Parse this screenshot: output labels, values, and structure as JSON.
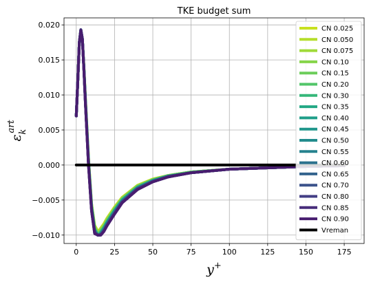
{
  "chart_data": {
    "type": "line",
    "title": "TKE budget sum",
    "xlabel": "y",
    "xlabel_sup": "+",
    "ylabel": "ε",
    "ylabel_sub": "k",
    "ylabel_sup": "art",
    "xlim": [
      -8,
      188
    ],
    "ylim": [
      -0.0112,
      0.021
    ],
    "xticks": [
      0,
      25,
      50,
      75,
      100,
      125,
      150,
      175
    ],
    "xtick_labels": [
      "0",
      "25",
      "50",
      "75",
      "100",
      "125",
      "150",
      "175"
    ],
    "yticks": [
      -0.01,
      -0.005,
      0.0,
      0.005,
      0.01,
      0.015,
      0.02
    ],
    "ytick_labels": [
      "−0.010",
      "−0.005",
      "0.000",
      "0.005",
      "0.010",
      "0.015",
      "0.020"
    ],
    "grid": true,
    "legend_position": "right",
    "x": [
      0,
      1,
      2,
      3,
      4,
      5,
      6,
      8,
      10,
      12,
      14,
      15,
      16,
      18,
      20,
      25,
      30,
      40,
      50,
      60,
      75,
      100,
      125,
      150,
      175
    ],
    "series": [
      {
        "name": "CN 0.025",
        "color": "#c8e020",
        "values": [
          0.007,
          0.012,
          0.0175,
          0.0193,
          0.018,
          0.014,
          0.0095,
          0.001,
          -0.0055,
          -0.0086,
          -0.0094,
          -0.0093,
          -0.009,
          -0.0084,
          -0.0076,
          -0.006,
          -0.0046,
          -0.0029,
          -0.002,
          -0.0015,
          -0.001,
          -0.0006,
          -0.0004,
          -0.0002,
          -0.0001
        ]
      },
      {
        "name": "CN 0.050",
        "color": "#b5de2b",
        "values": [
          0.007,
          0.012,
          0.0175,
          0.0193,
          0.018,
          0.014,
          0.0094,
          0.0009,
          -0.0056,
          -0.0087,
          -0.0095,
          -0.0094,
          -0.0091,
          -0.0085,
          -0.0077,
          -0.0061,
          -0.0047,
          -0.0029,
          -0.002,
          -0.0015,
          -0.001,
          -0.0006,
          -0.0004,
          -0.0002,
          -0.0001
        ]
      },
      {
        "name": "CN 0.075",
        "color": "#a0da39",
        "values": [
          0.007,
          0.012,
          0.0175,
          0.0193,
          0.018,
          0.0139,
          0.0094,
          0.0009,
          -0.0056,
          -0.0088,
          -0.0096,
          -0.0095,
          -0.0092,
          -0.0086,
          -0.0078,
          -0.0062,
          -0.0047,
          -0.003,
          -0.0021,
          -0.0015,
          -0.001,
          -0.0006,
          -0.0004,
          -0.0002,
          -0.0001
        ]
      },
      {
        "name": "CN 0.10",
        "color": "#86d549",
        "values": [
          0.007,
          0.012,
          0.0175,
          0.0193,
          0.018,
          0.0139,
          0.0093,
          0.0008,
          -0.0057,
          -0.0089,
          -0.0097,
          -0.0096,
          -0.0093,
          -0.0087,
          -0.0079,
          -0.0062,
          -0.0048,
          -0.003,
          -0.0021,
          -0.0015,
          -0.001,
          -0.0006,
          -0.0004,
          -0.0002,
          -0.0001
        ]
      },
      {
        "name": "CN 0.15",
        "color": "#6ccd5a",
        "values": [
          0.007,
          0.012,
          0.0175,
          0.0193,
          0.018,
          0.0139,
          0.0093,
          0.0007,
          -0.0058,
          -0.009,
          -0.0098,
          -0.0097,
          -0.0094,
          -0.0088,
          -0.008,
          -0.0063,
          -0.0048,
          -0.0031,
          -0.0021,
          -0.0015,
          -0.001,
          -0.0006,
          -0.0004,
          -0.0002,
          -0.0001
        ]
      },
      {
        "name": "CN 0.20",
        "color": "#52c569",
        "values": [
          0.007,
          0.012,
          0.0175,
          0.0193,
          0.018,
          0.0138,
          0.0092,
          0.0006,
          -0.0059,
          -0.0091,
          -0.0099,
          -0.0098,
          -0.0095,
          -0.0089,
          -0.0081,
          -0.0064,
          -0.0049,
          -0.0031,
          -0.0022,
          -0.0016,
          -0.001,
          -0.0006,
          -0.0004,
          -0.0002,
          -0.0001
        ]
      },
      {
        "name": "CN 0.30",
        "color": "#35b779",
        "values": [
          0.007,
          0.012,
          0.0175,
          0.0193,
          0.018,
          0.0138,
          0.0092,
          0.0005,
          -0.006,
          -0.0092,
          -0.01,
          -0.0099,
          -0.0096,
          -0.009,
          -0.0082,
          -0.0065,
          -0.005,
          -0.0032,
          -0.0022,
          -0.0016,
          -0.0011,
          -0.0006,
          -0.0004,
          -0.0002,
          -0.0001
        ]
      },
      {
        "name": "CN 0.35",
        "color": "#22a884",
        "values": [
          0.007,
          0.012,
          0.0175,
          0.0193,
          0.018,
          0.0138,
          0.0091,
          0.0005,
          -0.006,
          -0.0092,
          -0.01,
          -0.0099,
          -0.0097,
          -0.009,
          -0.0082,
          -0.0065,
          -0.005,
          -0.0032,
          -0.0022,
          -0.0016,
          -0.0011,
          -0.0006,
          -0.0004,
          -0.0002,
          -0.0001
        ]
      },
      {
        "name": "CN 0.40",
        "color": "#1f9e89",
        "values": [
          0.007,
          0.012,
          0.0175,
          0.0193,
          0.018,
          0.0138,
          0.0091,
          0.0004,
          -0.0061,
          -0.0093,
          -0.01,
          -0.01,
          -0.0097,
          -0.0091,
          -0.0083,
          -0.0066,
          -0.0051,
          -0.0032,
          -0.0022,
          -0.0016,
          -0.0011,
          -0.0006,
          -0.0004,
          -0.0002,
          -0.0001
        ]
      },
      {
        "name": "CN 0.45",
        "color": "#1f968b",
        "values": [
          0.007,
          0.012,
          0.0175,
          0.0193,
          0.018,
          0.0137,
          0.009,
          0.0004,
          -0.0061,
          -0.0093,
          -0.01,
          -0.01,
          -0.0098,
          -0.0091,
          -0.0083,
          -0.0066,
          -0.0051,
          -0.0033,
          -0.0023,
          -0.0016,
          -0.0011,
          -0.0006,
          -0.0004,
          -0.0002,
          -0.0001
        ]
      },
      {
        "name": "CN 0.50",
        "color": "#228c8d",
        "values": [
          0.007,
          0.012,
          0.0175,
          0.0193,
          0.018,
          0.0137,
          0.009,
          0.0003,
          -0.0062,
          -0.0094,
          -0.01,
          -0.01,
          -0.0098,
          -0.0092,
          -0.0084,
          -0.0067,
          -0.0051,
          -0.0033,
          -0.0023,
          -0.0016,
          -0.0011,
          -0.0006,
          -0.0004,
          -0.0002,
          -0.0001
        ]
      },
      {
        "name": "CN 0.55",
        "color": "#26828e",
        "values": [
          0.007,
          0.012,
          0.0175,
          0.0193,
          0.018,
          0.0137,
          0.009,
          0.0003,
          -0.0062,
          -0.0094,
          -0.01,
          -0.01,
          -0.0098,
          -0.0092,
          -0.0084,
          -0.0067,
          -0.0052,
          -0.0033,
          -0.0023,
          -0.0016,
          -0.0011,
          -0.0006,
          -0.0004,
          -0.0002,
          -0.0001
        ]
      },
      {
        "name": "CN 0.60",
        "color": "#2c728e",
        "values": [
          0.007,
          0.012,
          0.0175,
          0.0193,
          0.018,
          0.0137,
          0.0089,
          0.0002,
          -0.0063,
          -0.0095,
          -0.01,
          -0.01,
          -0.0099,
          -0.0093,
          -0.0085,
          -0.0068,
          -0.0052,
          -0.0033,
          -0.0023,
          -0.0016,
          -0.0011,
          -0.0006,
          -0.0004,
          -0.0002,
          -0.0001
        ]
      },
      {
        "name": "CN 0.65",
        "color": "#33638d",
        "values": [
          0.007,
          0.012,
          0.0175,
          0.0193,
          0.018,
          0.0136,
          0.0089,
          0.0002,
          -0.0063,
          -0.0095,
          -0.01,
          -0.01,
          -0.0099,
          -0.0093,
          -0.0085,
          -0.0068,
          -0.0052,
          -0.0034,
          -0.0023,
          -0.0017,
          -0.0011,
          -0.0006,
          -0.0004,
          -0.0002,
          -0.0001
        ]
      },
      {
        "name": "CN 0.70",
        "color": "#3b528b",
        "values": [
          0.007,
          0.012,
          0.0175,
          0.0193,
          0.018,
          0.0136,
          0.0088,
          0.0001,
          -0.0064,
          -0.0096,
          -0.01,
          -0.01,
          -0.0099,
          -0.0094,
          -0.0086,
          -0.0069,
          -0.0053,
          -0.0034,
          -0.0024,
          -0.0017,
          -0.0011,
          -0.0006,
          -0.0004,
          -0.0002,
          -0.0001
        ]
      },
      {
        "name": "CN 0.80",
        "color": "#433e85",
        "values": [
          0.007,
          0.012,
          0.0175,
          0.0193,
          0.018,
          0.0136,
          0.0088,
          0.0,
          -0.0065,
          -0.0097,
          -0.01,
          -0.01,
          -0.01,
          -0.0094,
          -0.0086,
          -0.0069,
          -0.0053,
          -0.0034,
          -0.0024,
          -0.0017,
          -0.0011,
          -0.0006,
          -0.0004,
          -0.0002,
          -0.0001
        ]
      },
      {
        "name": "CN 0.85",
        "color": "#472c7a",
        "values": [
          0.007,
          0.012,
          0.0175,
          0.0193,
          0.018,
          0.0135,
          0.0087,
          0.0,
          -0.0065,
          -0.0097,
          -0.01,
          -0.01,
          -0.01,
          -0.0095,
          -0.0087,
          -0.007,
          -0.0054,
          -0.0035,
          -0.0024,
          -0.0017,
          -0.0011,
          -0.0006,
          -0.0004,
          -0.0002,
          -0.0001
        ]
      },
      {
        "name": "CN 0.90",
        "color": "#481d6f",
        "values": [
          0.007,
          0.012,
          0.0175,
          0.0192,
          0.0179,
          0.0135,
          0.0087,
          -0.0001,
          -0.0066,
          -0.0098,
          -0.01,
          -0.01,
          -0.01,
          -0.0095,
          -0.0087,
          -0.007,
          -0.0054,
          -0.0035,
          -0.0024,
          -0.0017,
          -0.0011,
          -0.0006,
          -0.0004,
          -0.0002,
          -0.0001
        ]
      },
      {
        "name": "Vreman",
        "color": "#000000",
        "values": [
          0.0,
          0.0,
          0.0,
          0.0,
          0.0,
          0.0,
          0.0,
          0.0,
          0.0,
          0.0,
          0.0,
          0.0,
          0.0,
          0.0,
          0.0,
          0.0,
          0.0,
          0.0,
          0.0,
          0.0,
          0.0,
          0.0,
          0.0,
          0.0,
          0.0
        ]
      }
    ]
  }
}
